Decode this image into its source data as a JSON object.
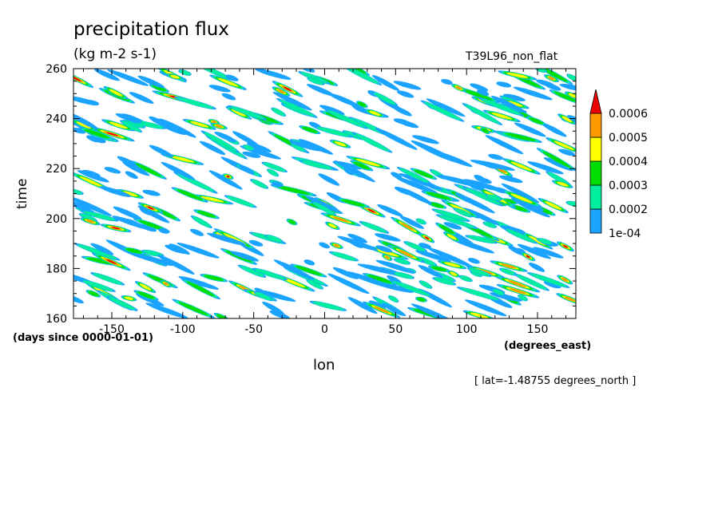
{
  "header": {
    "title": "precipitation flux",
    "units": "(kg m-2 s-1)",
    "run_id": "T39L96_non_flat"
  },
  "footer": {
    "location": "[ lat=-1.48755 degrees_north ]"
  },
  "colors": {
    "levels": [
      "#1aa3ff",
      "#00ee9e",
      "#00dd00",
      "#ffff00",
      "#ff9900",
      "#ee0000"
    ],
    "axis": "#000000"
  },
  "chart_data": {
    "type": "heatmap",
    "xlabel": "lon",
    "ylabel": "time",
    "x_units": "(degrees_east)",
    "y_units": "(days since 0000-01-01)",
    "xlim": [
      -177,
      177
    ],
    "ylim": [
      160,
      260
    ],
    "x_ticks": [
      -150,
      -100,
      -50,
      0,
      50,
      100,
      150
    ],
    "y_ticks": [
      160,
      180,
      200,
      220,
      240,
      260
    ],
    "colorbar": {
      "labels": [
        "1e-04",
        "0.0002",
        "0.0003",
        "0.0004",
        "0.0005",
        "0.0006"
      ],
      "levels": [
        0.0001,
        0.0002,
        0.0003,
        0.0004,
        0.0005,
        0.0006
      ],
      "extend": "max"
    },
    "pattern": "eastward-propagating streaks of precipitation; generated procedurally for visual approximation"
  }
}
